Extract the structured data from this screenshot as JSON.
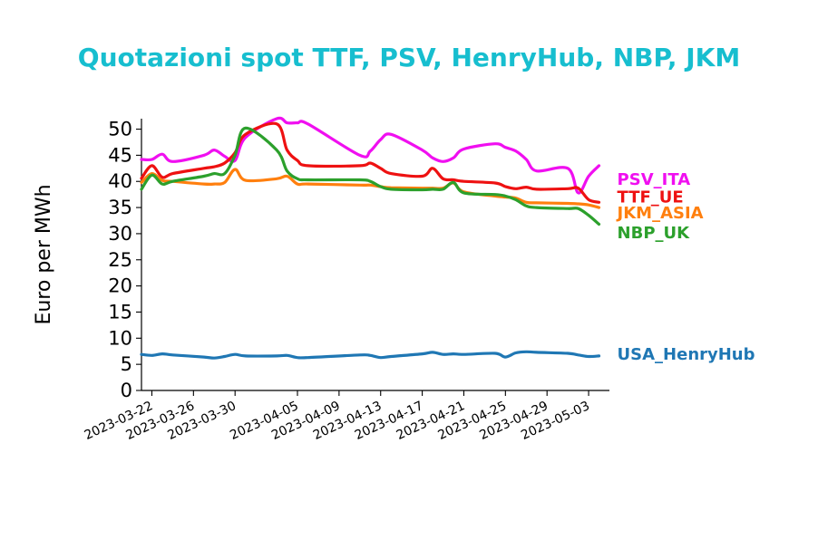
{
  "chart_data": {
    "type": "line",
    "title": "Quotazioni spot TTF, PSV, HenryHub, NBP, JKM",
    "title_color": "#17becf",
    "xlabel": "",
    "ylabel": "Euro per MWh",
    "ylim": [
      0,
      52
    ],
    "yticks": [
      0,
      5,
      10,
      15,
      20,
      25,
      30,
      35,
      40,
      45,
      50
    ],
    "xlim": [
      "2023-03-21",
      "2023-05-05"
    ],
    "xticks": [
      "2023-03-22",
      "2023-03-26",
      "2023-03-30",
      "2023-04-05",
      "2023-04-09",
      "2023-04-13",
      "2023-04-17",
      "2023-04-21",
      "2023-04-25",
      "2023-04-29",
      "2023-05-03"
    ],
    "grid": false,
    "legend": "inline labels at right end of lines",
    "x": [
      "2023-03-21",
      "2023-03-22",
      "2023-03-23",
      "2023-03-24",
      "2023-03-27",
      "2023-03-28",
      "2023-03-29",
      "2023-03-30",
      "2023-03-31",
      "2023-04-03",
      "2023-04-04",
      "2023-04-05",
      "2023-04-06",
      "2023-04-11",
      "2023-04-12",
      "2023-04-13",
      "2023-04-14",
      "2023-04-17",
      "2023-04-18",
      "2023-04-19",
      "2023-04-20",
      "2023-04-21",
      "2023-04-24",
      "2023-04-25",
      "2023-04-26",
      "2023-04-27",
      "2023-04-28",
      "2023-05-01",
      "2023-05-02",
      "2023-05-03",
      "2023-05-04"
    ],
    "series": [
      {
        "name": "PSV_ITA",
        "color": "#f00ff0",
        "values": [
          44.2,
          44.2,
          45.2,
          43.8,
          45.0,
          46.0,
          44.8,
          44.0,
          48.4,
          52.0,
          51.2,
          51.2,
          51.0,
          45.0,
          45.8,
          48.0,
          49.0,
          46.0,
          44.5,
          43.8,
          44.5,
          46.2,
          47.2,
          46.5,
          45.8,
          44.2,
          42.0,
          42.5,
          37.8,
          41.0,
          43.0
        ]
      },
      {
        "name": "TTF_UE",
        "color": "#ee1111",
        "values": [
          40.6,
          43.0,
          40.8,
          41.5,
          42.5,
          42.8,
          43.5,
          45.5,
          49.0,
          51.0,
          46.0,
          44.0,
          43.0,
          43.0,
          43.5,
          42.5,
          41.5,
          41.0,
          42.5,
          40.5,
          40.3,
          40.0,
          39.7,
          39.0,
          38.6,
          38.9,
          38.5,
          38.6,
          38.7,
          36.5,
          36.0
        ]
      },
      {
        "name": "JKM_ASIA",
        "color": "#ff7f0e",
        "values": [
          39.8,
          41.5,
          40.2,
          40.0,
          39.5,
          39.5,
          39.8,
          42.3,
          40.2,
          40.5,
          41.0,
          39.5,
          39.5,
          39.3,
          39.3,
          39.0,
          38.8,
          38.7,
          38.7,
          38.7,
          39.7,
          38.0,
          37.2,
          37.0,
          36.8,
          36.0,
          35.9,
          35.8,
          35.7,
          35.5,
          35.0
        ]
      },
      {
        "name": "NBP_UK",
        "color": "#2ca02c",
        "values": [
          38.5,
          41.2,
          39.5,
          40.0,
          41.0,
          41.5,
          41.5,
          45.0,
          50.2,
          46.0,
          42.0,
          40.5,
          40.3,
          40.3,
          40.0,
          39.0,
          38.5,
          38.4,
          38.5,
          38.5,
          39.8,
          37.8,
          37.5,
          37.2,
          36.5,
          35.3,
          35.0,
          34.8,
          34.8,
          33.5,
          31.8
        ]
      },
      {
        "name": "USA_HenryHub",
        "color": "#1f77b4",
        "values": [
          6.9,
          6.7,
          7.0,
          6.8,
          6.4,
          6.2,
          6.5,
          6.9,
          6.6,
          6.6,
          6.7,
          6.3,
          6.3,
          6.8,
          6.7,
          6.3,
          6.5,
          7.0,
          7.3,
          6.9,
          7.0,
          6.9,
          7.1,
          6.4,
          7.2,
          7.4,
          7.3,
          7.1,
          6.8,
          6.5,
          6.6
        ]
      }
    ]
  },
  "series_labels": [
    "PSV_ITA",
    "TTF_UE",
    "JKM_ASIA",
    "NBP_UK",
    "USA_HenryHub"
  ]
}
